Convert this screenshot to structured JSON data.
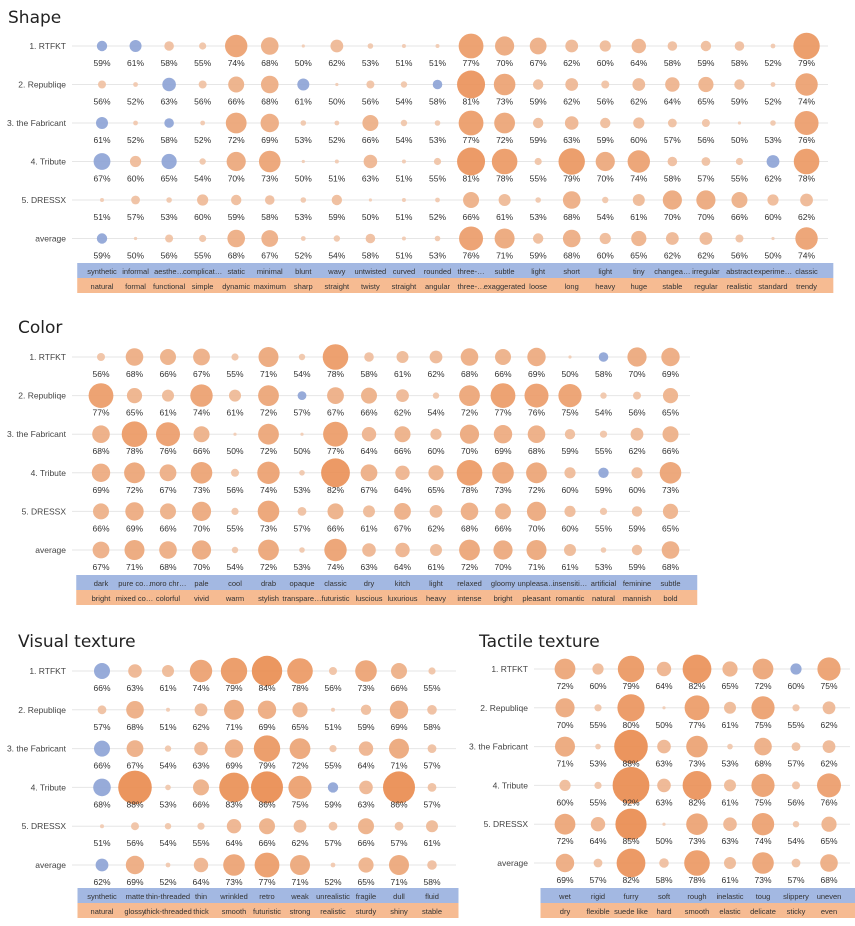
{
  "colors": {
    "low": "#8ea4d6",
    "high": "#f0a070",
    "band_top": "#a3b8e2",
    "band_bottom": "#f6bb92",
    "grid": "#e6e6e6"
  },
  "chart_data": [
    {
      "type": "scatter",
      "encoding": "bubble",
      "title": "Shape",
      "rows": [
        "1. RTFKT",
        "2. Republiqe",
        "3. the Fabricant",
        "4. Tribute",
        "5. DRESSX",
        "average"
      ],
      "categories_top": [
        "synthetic",
        "informal",
        "aesthe…",
        "complicat…",
        "static",
        "minimal",
        "blunt",
        "wavy",
        "untwisted",
        "curved",
        "rounded",
        "three-…",
        "subtle",
        "light",
        "short",
        "light",
        "tiny",
        "changea…",
        "irregular",
        "abstract",
        "experime…",
        "classic"
      ],
      "categories_bottom": [
        "natural",
        "formal",
        "functional",
        "simple",
        "dynamic",
        "maximum",
        "sharp",
        "straight",
        "twisty",
        "straight",
        "angular",
        "three-…",
        "exaggerated",
        "loose",
        "long",
        "heavy",
        "huge",
        "stable",
        "regular",
        "realistic",
        "standard",
        "trendy"
      ],
      "values": [
        [
          59,
          61,
          58,
          55,
          74,
          68,
          50,
          62,
          53,
          51,
          51,
          77,
          70,
          67,
          62,
          60,
          64,
          58,
          59,
          58,
          52,
          79
        ],
        [
          56,
          52,
          63,
          56,
          66,
          68,
          61,
          50,
          56,
          54,
          58,
          81,
          73,
          59,
          62,
          56,
          62,
          64,
          65,
          59,
          52,
          74
        ],
        [
          61,
          52,
          58,
          52,
          72,
          69,
          53,
          52,
          66,
          54,
          53,
          77,
          72,
          59,
          63,
          59,
          60,
          57,
          56,
          50,
          53,
          76
        ],
        [
          67,
          60,
          65,
          54,
          70,
          73,
          50,
          51,
          63,
          51,
          55,
          81,
          78,
          55,
          79,
          70,
          74,
          58,
          57,
          55,
          62,
          78
        ],
        [
          51,
          57,
          53,
          60,
          59,
          58,
          53,
          59,
          50,
          51,
          52,
          66,
          61,
          53,
          68,
          54,
          61,
          70,
          70,
          66,
          60,
          62
        ],
        [
          59,
          50,
          56,
          55,
          68,
          67,
          52,
          54,
          58,
          51,
          53,
          76,
          71,
          59,
          68,
          60,
          65,
          62,
          62,
          56,
          50,
          74
        ]
      ],
      "direction": [
        [
          "low",
          "low",
          "high",
          "high",
          "high",
          "high",
          "high",
          "high",
          "high",
          "high",
          "high",
          "high",
          "high",
          "high",
          "high",
          "high",
          "high",
          "high",
          "high",
          "high",
          "high",
          "high"
        ],
        [
          "high",
          "high",
          "low",
          "high",
          "high",
          "high",
          "low",
          "high",
          "high",
          "high",
          "low",
          "high",
          "high",
          "high",
          "high",
          "high",
          "high",
          "high",
          "high",
          "high",
          "high",
          "high"
        ],
        [
          "low",
          "high",
          "low",
          "high",
          "high",
          "high",
          "high",
          "high",
          "high",
          "high",
          "high",
          "high",
          "high",
          "high",
          "high",
          "high",
          "high",
          "high",
          "high",
          "high",
          "high",
          "high"
        ],
        [
          "low",
          "high",
          "low",
          "high",
          "high",
          "high",
          "high",
          "high",
          "high",
          "high",
          "high",
          "high",
          "high",
          "high",
          "high",
          "high",
          "high",
          "high",
          "high",
          "high",
          "low",
          "high"
        ],
        [
          "high",
          "high",
          "high",
          "high",
          "high",
          "high",
          "high",
          "high",
          "high",
          "high",
          "high",
          "high",
          "high",
          "high",
          "high",
          "high",
          "high",
          "high",
          "high",
          "high",
          "high",
          "high"
        ],
        [
          "low",
          "high",
          "high",
          "high",
          "high",
          "high",
          "high",
          "high",
          "high",
          "high",
          "high",
          "high",
          "high",
          "high",
          "high",
          "high",
          "high",
          "high",
          "high",
          "high",
          "high",
          "high"
        ]
      ]
    },
    {
      "type": "scatter",
      "encoding": "bubble",
      "title": "Color",
      "rows": [
        "1. RTFKT",
        "2. Republiqe",
        "3. the Fabricant",
        "4. Tribute",
        "5. DRESSX",
        "average"
      ],
      "categories_top": [
        "dark",
        "pure co…",
        "moro chr…",
        "pale",
        "cool",
        "drab",
        "opaque",
        "classic",
        "dry",
        "kitch",
        "light",
        "relaxed",
        "gloomy",
        "unpleasa…",
        "insensiti…",
        "artificial",
        "feminine",
        "subtle"
      ],
      "categories_bottom": [
        "bright",
        "mixed co…",
        "colorful",
        "vivid",
        "warm",
        "stylish",
        "transpare…",
        "futuristic",
        "luscious",
        "luxurious",
        "heavy",
        "intense",
        "bright",
        "pleasant",
        "romantic",
        "natural",
        "mannish",
        "bold"
      ],
      "values": [
        [
          56,
          68,
          66,
          67,
          55,
          71,
          54,
          78,
          58,
          61,
          62,
          68,
          66,
          69,
          50,
          58,
          70,
          69
        ],
        [
          77,
          65,
          61,
          74,
          61,
          72,
          57,
          67,
          66,
          62,
          54,
          72,
          77,
          76,
          75,
          54,
          56,
          65
        ],
        [
          68,
          78,
          76,
          66,
          50,
          72,
          50,
          77,
          64,
          66,
          60,
          70,
          69,
          68,
          59,
          55,
          62,
          66
        ],
        [
          69,
          72,
          67,
          73,
          56,
          74,
          53,
          82,
          67,
          64,
          65,
          78,
          73,
          72,
          60,
          59,
          60,
          73
        ],
        [
          66,
          69,
          66,
          70,
          55,
          73,
          57,
          66,
          61,
          67,
          62,
          68,
          66,
          70,
          60,
          55,
          59,
          65
        ],
        [
          67,
          71,
          68,
          70,
          54,
          72,
          53,
          74,
          63,
          64,
          61,
          72,
          70,
          71,
          61,
          53,
          59,
          68
        ]
      ],
      "direction": [
        [
          "high",
          "high",
          "high",
          "high",
          "high",
          "high",
          "high",
          "high",
          "high",
          "high",
          "high",
          "high",
          "high",
          "high",
          "high",
          "low",
          "high",
          "high"
        ],
        [
          "high",
          "high",
          "high",
          "high",
          "high",
          "high",
          "low",
          "high",
          "high",
          "high",
          "high",
          "high",
          "high",
          "high",
          "high",
          "high",
          "high",
          "high"
        ],
        [
          "high",
          "high",
          "high",
          "high",
          "high",
          "high",
          "high",
          "high",
          "high",
          "high",
          "high",
          "high",
          "high",
          "high",
          "high",
          "high",
          "high",
          "high"
        ],
        [
          "high",
          "high",
          "high",
          "high",
          "high",
          "high",
          "high",
          "high",
          "high",
          "high",
          "high",
          "high",
          "high",
          "high",
          "high",
          "low",
          "high",
          "high"
        ],
        [
          "high",
          "high",
          "high",
          "high",
          "high",
          "high",
          "high",
          "high",
          "high",
          "high",
          "high",
          "high",
          "high",
          "high",
          "high",
          "high",
          "high",
          "high"
        ],
        [
          "high",
          "high",
          "high",
          "high",
          "high",
          "high",
          "high",
          "high",
          "high",
          "high",
          "high",
          "high",
          "high",
          "high",
          "high",
          "high",
          "high",
          "high"
        ]
      ]
    },
    {
      "type": "scatter",
      "encoding": "bubble",
      "title": "Visual texture",
      "rows": [
        "1. RTFKT",
        "2. Republiqe",
        "3. the Fabricant",
        "4. Tribute",
        "5. DRESSX",
        "average"
      ],
      "categories_top": [
        "synthetic",
        "matte",
        "thin-threaded",
        "thin",
        "wrinkled",
        "retro",
        "weak",
        "unrealistic",
        "fragile",
        "dull",
        "fluid"
      ],
      "categories_bottom": [
        "natural",
        "glossy",
        "thick-threaded",
        "thick",
        "smooth",
        "futuristic",
        "strong",
        "realistic",
        "sturdy",
        "shiny",
        "stable"
      ],
      "values": [
        [
          66,
          63,
          61,
          74,
          79,
          84,
          78,
          56,
          73,
          66,
          55
        ],
        [
          57,
          68,
          51,
          62,
          71,
          69,
          65,
          51,
          59,
          69,
          58
        ],
        [
          66,
          67,
          54,
          63,
          69,
          79,
          72,
          55,
          64,
          71,
          57
        ],
        [
          68,
          88,
          53,
          66,
          83,
          86,
          75,
          59,
          63,
          86,
          57
        ],
        [
          51,
          56,
          54,
          55,
          64,
          66,
          62,
          57,
          66,
          57,
          61
        ],
        [
          62,
          69,
          52,
          64,
          73,
          77,
          71,
          52,
          65,
          71,
          58
        ]
      ],
      "direction": [
        [
          "low",
          "high",
          "high",
          "high",
          "high",
          "high",
          "high",
          "high",
          "high",
          "high",
          "high"
        ],
        [
          "high",
          "high",
          "high",
          "high",
          "high",
          "high",
          "high",
          "high",
          "high",
          "high",
          "high"
        ],
        [
          "low",
          "high",
          "high",
          "high",
          "high",
          "high",
          "high",
          "high",
          "high",
          "high",
          "high"
        ],
        [
          "low",
          "high",
          "high",
          "high",
          "high",
          "high",
          "high",
          "low",
          "high",
          "high",
          "high"
        ],
        [
          "high",
          "high",
          "high",
          "high",
          "high",
          "high",
          "high",
          "high",
          "high",
          "high",
          "high"
        ],
        [
          "low",
          "high",
          "high",
          "high",
          "high",
          "high",
          "high",
          "high",
          "high",
          "high",
          "high"
        ]
      ]
    },
    {
      "type": "scatter",
      "encoding": "bubble",
      "title": "Tactile texture",
      "rows": [
        "1. RTFKT",
        "2. Republiqe",
        "3. the Fabricant",
        "4. Tribute",
        "5. DRESSX",
        "average"
      ],
      "categories_top": [
        "wet",
        "rigid",
        "furry",
        "soft",
        "rough",
        "inelastic",
        "toug",
        "slippery",
        "uneven"
      ],
      "categories_bottom": [
        "dry",
        "flexible",
        "suede like",
        "hard",
        "smooth",
        "elastic",
        "delicate",
        "sticky",
        "even"
      ],
      "values": [
        [
          72,
          60,
          79,
          64,
          82,
          65,
          72,
          60,
          75
        ],
        [
          70,
          55,
          80,
          50,
          77,
          61,
          75,
          55,
          62
        ],
        [
          71,
          53,
          88,
          63,
          73,
          53,
          68,
          57,
          62
        ],
        [
          60,
          55,
          92,
          63,
          82,
          61,
          75,
          56,
          76
        ],
        [
          72,
          64,
          85,
          50,
          73,
          63,
          74,
          54,
          65
        ],
        [
          69,
          57,
          82,
          58,
          78,
          61,
          73,
          57,
          68
        ]
      ],
      "direction": [
        [
          "high",
          "high",
          "high",
          "high",
          "high",
          "high",
          "high",
          "low",
          "high"
        ],
        [
          "high",
          "high",
          "high",
          "high",
          "high",
          "high",
          "high",
          "high",
          "high"
        ],
        [
          "high",
          "high",
          "high",
          "high",
          "high",
          "high",
          "high",
          "high",
          "high"
        ],
        [
          "high",
          "high",
          "high",
          "high",
          "high",
          "high",
          "high",
          "high",
          "high"
        ],
        [
          "high",
          "high",
          "high",
          "high",
          "high",
          "high",
          "high",
          "high",
          "high"
        ],
        [
          "high",
          "high",
          "high",
          "high",
          "high",
          "high",
          "high",
          "high",
          "high"
        ]
      ]
    }
  ]
}
